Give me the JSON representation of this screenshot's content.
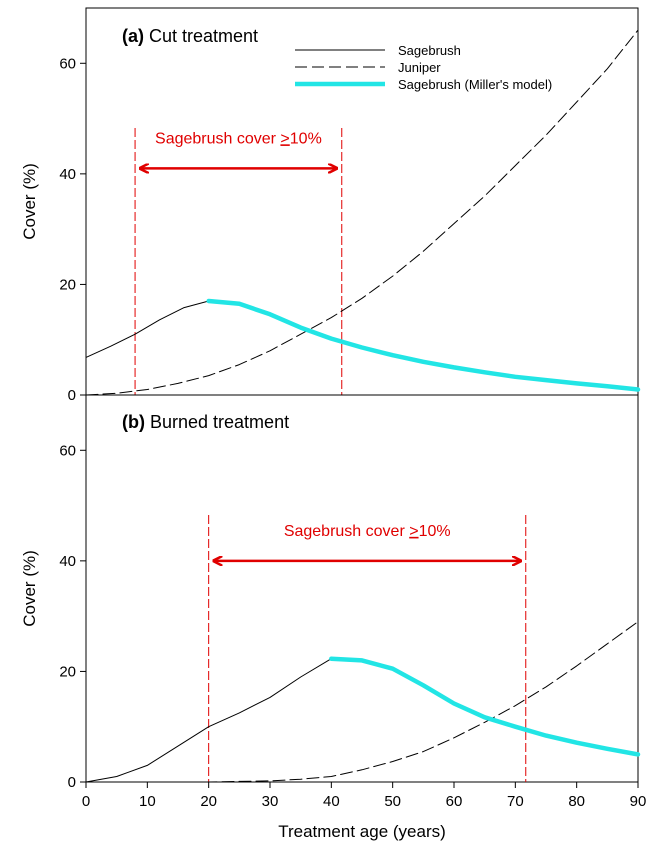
{
  "chart_data": [
    {
      "type": "line",
      "panel_letter": "(a)",
      "title": "Cut treatment",
      "ylabel": "Cover (%)",
      "xlabel": "",
      "xlim": [
        0,
        90
      ],
      "ylim": [
        0,
        70
      ],
      "yticks": [
        0,
        20,
        40,
        60
      ],
      "xticks": [],
      "legend_position": "top-right",
      "series": [
        {
          "name": "Sagebrush",
          "style": "solid",
          "color": "#000000",
          "x": [
            0,
            4,
            8,
            12,
            16,
            20
          ],
          "y": [
            6.8,
            8.8,
            11,
            13.6,
            15.8,
            17
          ]
        },
        {
          "name": "Juniper",
          "style": "dashed",
          "color": "#000000",
          "x": [
            0,
            5,
            10,
            15,
            20,
            25,
            30,
            35,
            40,
            45,
            50,
            55,
            60,
            65,
            70,
            75,
            80,
            85,
            90
          ],
          "y": [
            0,
            0.3,
            1.0,
            2.1,
            3.5,
            5.5,
            8.0,
            11.0,
            14.0,
            17.5,
            21.5,
            26.0,
            31.0,
            36.0,
            41.5,
            47.0,
            53.0,
            59.0,
            66.0
          ]
        },
        {
          "name": "Sagebrush (Miller's model)",
          "style": "solid-thick",
          "color": "#22e5e5",
          "x": [
            20,
            25,
            30,
            35,
            40,
            45,
            50,
            55,
            60,
            65,
            70,
            75,
            80,
            85,
            90
          ],
          "y": [
            17,
            16.5,
            14.6,
            12.2,
            10.2,
            8.6,
            7.2,
            6.0,
            5.0,
            4.1,
            3.3,
            2.7,
            2.1,
            1.6,
            1.0
          ]
        }
      ],
      "annotation": {
        "text_before": "Sagebrush cover ",
        "text_underlined": ">",
        "text_after": "10%",
        "color": "#e00000",
        "x_range": [
          8,
          41.7
        ],
        "arrow_y": 41
      }
    },
    {
      "type": "line",
      "panel_letter": "(b)",
      "title": "Burned treatment",
      "ylabel": "Cover (%)",
      "xlabel": "Treatment age (years)",
      "xlim": [
        0,
        90
      ],
      "ylim": [
        0,
        70
      ],
      "yticks": [
        0,
        20,
        40,
        60
      ],
      "xticks": [
        0,
        10,
        20,
        30,
        40,
        50,
        60,
        70,
        80,
        90
      ],
      "series": [
        {
          "name": "Sagebrush",
          "style": "solid",
          "color": "#000000",
          "x": [
            0,
            5,
            10,
            15,
            20,
            25,
            30,
            35,
            40
          ],
          "y": [
            0,
            1.0,
            3.0,
            6.5,
            10.0,
            12.5,
            15.3,
            19.0,
            22.3
          ]
        },
        {
          "name": "Juniper",
          "style": "dashed",
          "color": "#000000",
          "x": [
            0,
            10,
            20,
            25,
            30,
            35,
            40,
            45,
            50,
            55,
            60,
            65,
            70,
            75,
            80,
            85,
            90
          ],
          "y": [
            0,
            0,
            0,
            0.1,
            0.2,
            0.5,
            1.0,
            2.2,
            3.7,
            5.5,
            8.0,
            10.8,
            13.8,
            17.2,
            21.0,
            25.0,
            29.0
          ]
        },
        {
          "name": "Sagebrush (Miller's model)",
          "style": "solid-thick",
          "color": "#22e5e5",
          "x": [
            40,
            45,
            50,
            55,
            60,
            65,
            70,
            75,
            80,
            85,
            90
          ],
          "y": [
            22.3,
            22,
            20.5,
            17.5,
            14.2,
            11.7,
            10.0,
            8.4,
            7.1,
            6.0,
            5.0
          ]
        }
      ],
      "annotation": {
        "text_before": "Sagebrush cover ",
        "text_underlined": ">",
        "text_after": "10%",
        "color": "#e00000",
        "x_range": [
          20,
          71.7
        ],
        "arrow_y": 40
      }
    }
  ]
}
